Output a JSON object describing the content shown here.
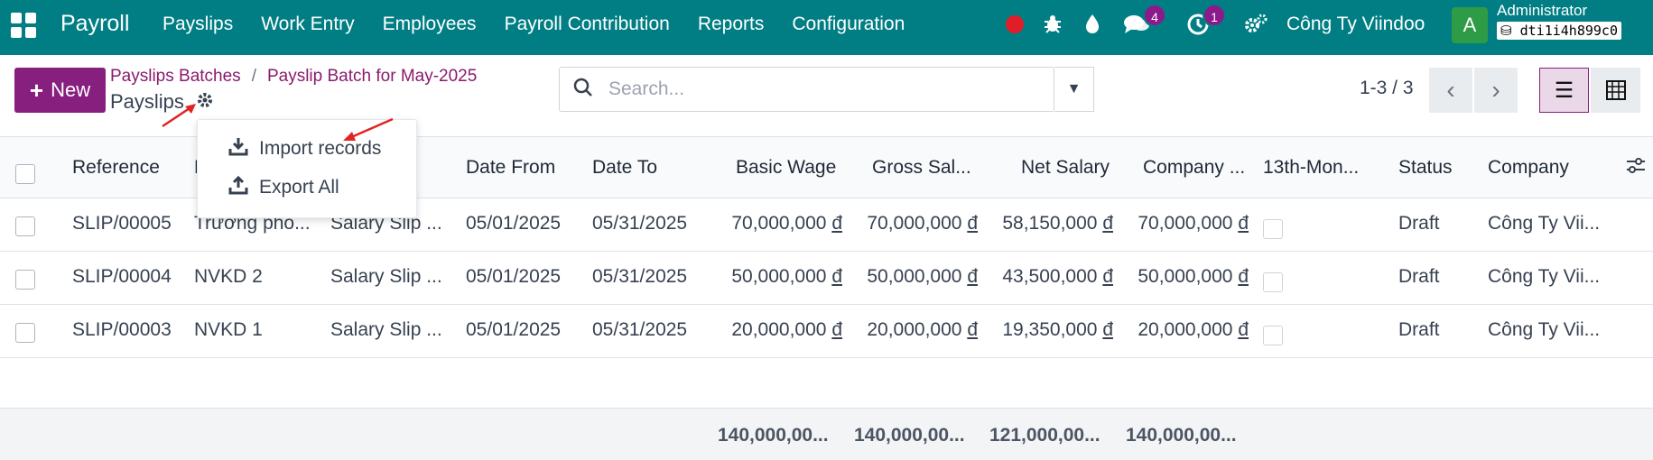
{
  "topbar": {
    "brand": "Payroll",
    "menu": [
      "Payslips",
      "Work Entry",
      "Employees",
      "Payroll Contribution",
      "Reports",
      "Configuration"
    ],
    "messages_badge": "4",
    "activities_badge": "1",
    "company": "Công Ty Viindoo",
    "avatar_letter": "A",
    "user": "Administrator",
    "db": "dti1i4h899c0"
  },
  "controls": {
    "new_label": "New",
    "breadcrumb": [
      "Payslips Batches",
      "Payslip Batch for May-2025"
    ],
    "breadcrumb_sep": "/",
    "page_title": "Payslips",
    "search_placeholder": "Search...",
    "pager": "1-3 / 3"
  },
  "gear_menu": {
    "items": [
      "Import records",
      "Export All"
    ]
  },
  "table": {
    "headers": [
      "Reference",
      "E",
      "...",
      "Date From",
      "Date To",
      "Basic Wage",
      "Gross Sal...",
      "Net Salary",
      "Company ...",
      "13th-Mon...",
      "Status",
      "Company"
    ],
    "rows": [
      [
        "SLIP/00005",
        "Trương phò...",
        "Salary Slip ...",
        "05/01/2025",
        "05/31/2025",
        "70,000,000",
        "70,000,000",
        "58,150,000",
        "70,000,000",
        "",
        "Draft",
        "Công Ty Vii..."
      ],
      [
        "SLIP/00004",
        "NVKD 2",
        "Salary Slip ...",
        "05/01/2025",
        "05/31/2025",
        "50,000,000",
        "50,000,000",
        "43,500,000",
        "50,000,000",
        "",
        "Draft",
        "Công Ty Vii..."
      ],
      [
        "SLIP/00003",
        "NVKD 1",
        "Salary Slip ...",
        "05/01/2025",
        "05/31/2025",
        "20,000,000",
        "20,000,000",
        "19,350,000",
        "20,000,000",
        "",
        "Draft",
        "Công Ty Vii..."
      ]
    ],
    "currency": "đ",
    "totals": [
      "140,000,00...",
      "140,000,00...",
      "121,000,00...",
      "140,000,00..."
    ]
  },
  "colors": {
    "topbar": "#017e84",
    "primary": "#871f7e",
    "annotation_arrow": "#e02424"
  }
}
